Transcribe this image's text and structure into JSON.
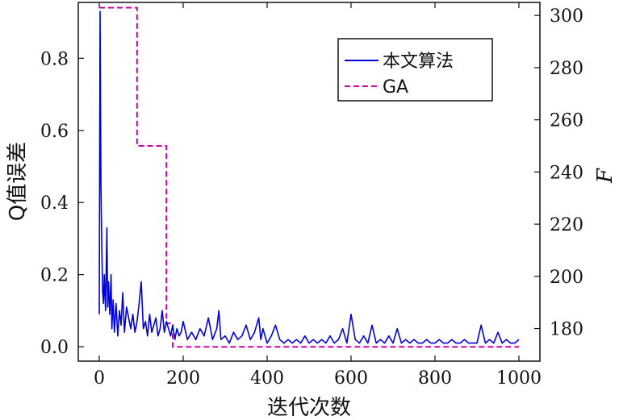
{
  "chart_data": {
    "type": "line",
    "xlabel": "迭代次数",
    "ylabel": "Q值误差",
    "ylabel_right": "F",
    "xlim": [
      -50,
      1050
    ],
    "ylim": [
      -0.04,
      0.955
    ],
    "ylim_right": [
      167.5,
      305
    ],
    "x_ticks": [
      0,
      200,
      400,
      600,
      800,
      1000
    ],
    "x_tick_labels": [
      "0",
      "200",
      "400",
      "600",
      "800",
      "1000"
    ],
    "y_ticks": [
      0.0,
      0.2,
      0.4,
      0.6,
      0.8
    ],
    "y_tick_labels": [
      "0.0",
      "0.2",
      "0.4",
      "0.6",
      "0.8"
    ],
    "y_right_ticks": [
      180,
      200,
      220,
      240,
      260,
      280,
      300
    ],
    "y_right_tick_labels": [
      "180",
      "200",
      "220",
      "240",
      "260",
      "280",
      "300"
    ],
    "grid": false,
    "legend_position": "top-right",
    "colors": {
      "ours": "#0000dd",
      "ga": "#cc00aa"
    },
    "series": [
      {
        "name": "本文算法",
        "axis": "left",
        "style": "solid",
        "x": [
          0,
          2,
          4,
          6,
          8,
          10,
          12,
          15,
          18,
          20,
          22,
          25,
          28,
          30,
          33,
          36,
          40,
          44,
          48,
          52,
          56,
          60,
          65,
          70,
          75,
          80,
          85,
          90,
          95,
          100,
          105,
          110,
          115,
          120,
          125,
          130,
          135,
          140,
          145,
          150,
          155,
          160,
          165,
          170,
          175,
          180,
          185,
          190,
          195,
          200,
          210,
          220,
          230,
          240,
          250,
          260,
          270,
          280,
          285,
          290,
          300,
          310,
          320,
          330,
          340,
          350,
          360,
          370,
          380,
          385,
          390,
          400,
          410,
          420,
          430,
          440,
          450,
          460,
          470,
          480,
          490,
          500,
          510,
          520,
          530,
          540,
          550,
          560,
          570,
          580,
          590,
          600,
          610,
          620,
          630,
          640,
          650,
          660,
          670,
          680,
          690,
          700,
          710,
          720,
          730,
          740,
          750,
          760,
          770,
          780,
          790,
          800,
          810,
          820,
          830,
          840,
          850,
          860,
          870,
          880,
          890,
          900,
          910,
          920,
          930,
          940,
          950,
          960,
          970,
          980,
          990,
          1000
        ],
        "values": [
          0.09,
          0.93,
          0.45,
          0.28,
          0.15,
          0.12,
          0.2,
          0.1,
          0.33,
          0.11,
          0.18,
          0.09,
          0.2,
          0.05,
          0.13,
          0.04,
          0.12,
          0.03,
          0.1,
          0.06,
          0.15,
          0.04,
          0.11,
          0.08,
          0.05,
          0.09,
          0.04,
          0.07,
          0.12,
          0.18,
          0.05,
          0.07,
          0.03,
          0.09,
          0.04,
          0.06,
          0.08,
          0.03,
          0.05,
          0.1,
          0.04,
          0.07,
          0.05,
          0.03,
          0.06,
          0.02,
          0.05,
          0.03,
          0.04,
          0.07,
          0.02,
          0.04,
          0.02,
          0.05,
          0.03,
          0.08,
          0.02,
          0.05,
          0.1,
          0.02,
          0.03,
          0.01,
          0.04,
          0.02,
          0.03,
          0.06,
          0.02,
          0.04,
          0.08,
          0.02,
          0.05,
          0.01,
          0.03,
          0.06,
          0.02,
          0.01,
          0.02,
          0.01,
          0.02,
          0.01,
          0.03,
          0.01,
          0.02,
          0.01,
          0.02,
          0.01,
          0.03,
          0.01,
          0.02,
          0.05,
          0.01,
          0.09,
          0.02,
          0.01,
          0.03,
          0.01,
          0.06,
          0.01,
          0.02,
          0.01,
          0.03,
          0.01,
          0.05,
          0.01,
          0.02,
          0.01,
          0.02,
          0.01,
          0.01,
          0.02,
          0.01,
          0.01,
          0.02,
          0.01,
          0.01,
          0.02,
          0.01,
          0.01,
          0.02,
          0.01,
          0.01,
          0.01,
          0.06,
          0.01,
          0.02,
          0.01,
          0.04,
          0.01,
          0.02,
          0.01,
          0.01,
          0.02
        ]
      },
      {
        "name": "GA",
        "axis": "right",
        "style": "dashed",
        "x": [
          0,
          90,
          90,
          160,
          160,
          175,
          175,
          1000
        ],
        "values": [
          303,
          303,
          250,
          250,
          182,
          182,
          173,
          173
        ]
      }
    ]
  }
}
